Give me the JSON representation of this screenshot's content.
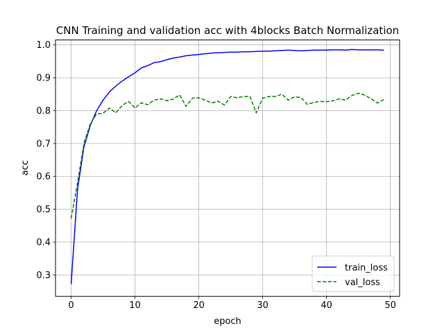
{
  "chart_data": {
    "type": "line",
    "title": "CNN Training and validation acc with 4blocks Batch Normalization",
    "xlabel": "epoch",
    "ylabel": "acc",
    "xlim": [
      -2.45,
      51.45
    ],
    "ylim": [
      0.235,
      1.015
    ],
    "xticks": [
      0,
      10,
      20,
      30,
      40,
      50
    ],
    "yticks": [
      0.3,
      0.4,
      0.5,
      0.6,
      0.7,
      0.8,
      0.9,
      1.0
    ],
    "ytick_labels": [
      "0.3",
      "0.4",
      "0.5",
      "0.6",
      "0.7",
      "0.8",
      "0.9",
      "1.0"
    ],
    "grid": true,
    "legend_position": "bottom-right",
    "series": [
      {
        "name": "train_loss",
        "color": "#0000ff",
        "style": "solid",
        "x": [
          0,
          1,
          2,
          3,
          4,
          5,
          6,
          7,
          8,
          9,
          10,
          11,
          12,
          13,
          14,
          15,
          16,
          17,
          18,
          19,
          20,
          21,
          22,
          23,
          24,
          25,
          26,
          27,
          28,
          29,
          30,
          31,
          32,
          33,
          34,
          35,
          36,
          37,
          38,
          39,
          40,
          41,
          42,
          43,
          44,
          45,
          46,
          47,
          48,
          49
        ],
        "values": [
          0.272,
          0.56,
          0.69,
          0.755,
          0.8,
          0.832,
          0.857,
          0.875,
          0.89,
          0.903,
          0.915,
          0.93,
          0.937,
          0.946,
          0.949,
          0.955,
          0.96,
          0.963,
          0.967,
          0.969,
          0.971,
          0.973,
          0.975,
          0.976,
          0.977,
          0.978,
          0.978,
          0.979,
          0.979,
          0.98,
          0.981,
          0.981,
          0.982,
          0.983,
          0.984,
          0.983,
          0.982,
          0.983,
          0.984,
          0.984,
          0.984,
          0.985,
          0.985,
          0.984,
          0.986,
          0.985,
          0.985,
          0.985,
          0.985,
          0.984
        ]
      },
      {
        "name": "val_loss",
        "color": "#008000",
        "style": "dashed",
        "x": [
          0,
          1,
          2,
          3,
          4,
          5,
          6,
          7,
          8,
          9,
          10,
          11,
          12,
          13,
          14,
          15,
          16,
          17,
          18,
          19,
          20,
          21,
          22,
          23,
          24,
          25,
          26,
          27,
          28,
          29,
          30,
          31,
          32,
          33,
          34,
          35,
          36,
          37,
          38,
          39,
          40,
          41,
          42,
          43,
          44,
          45,
          46,
          47,
          48,
          49
        ],
        "values": [
          0.472,
          0.58,
          0.7,
          0.76,
          0.79,
          0.792,
          0.808,
          0.793,
          0.816,
          0.828,
          0.808,
          0.824,
          0.818,
          0.832,
          0.836,
          0.83,
          0.835,
          0.848,
          0.813,
          0.838,
          0.839,
          0.832,
          0.823,
          0.829,
          0.817,
          0.843,
          0.839,
          0.843,
          0.843,
          0.793,
          0.838,
          0.843,
          0.843,
          0.85,
          0.832,
          0.842,
          0.84,
          0.819,
          0.825,
          0.828,
          0.827,
          0.83,
          0.836,
          0.832,
          0.846,
          0.853,
          0.847,
          0.836,
          0.823,
          0.834
        ]
      }
    ]
  }
}
